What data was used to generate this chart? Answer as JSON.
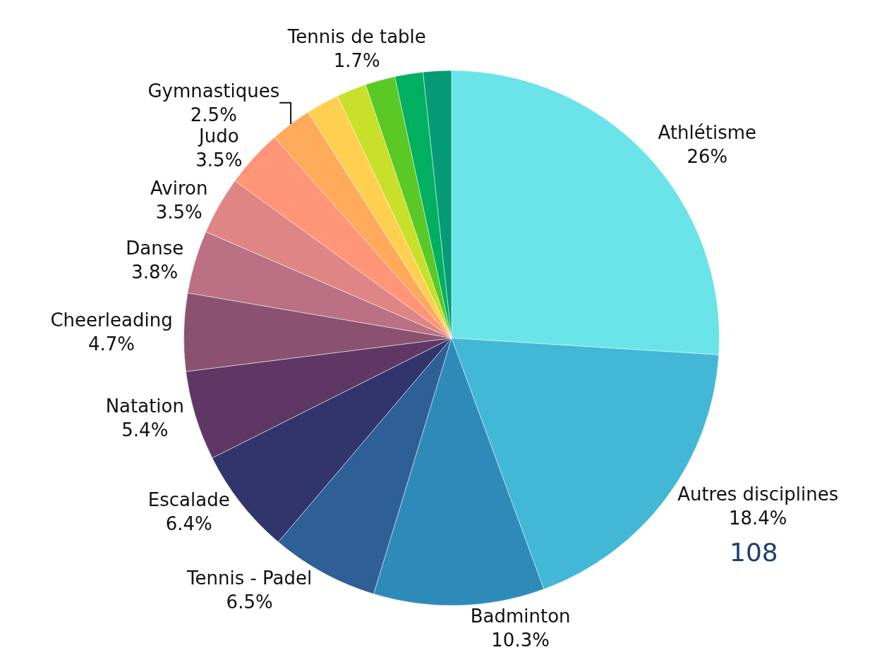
{
  "chart_data": {
    "type": "pie",
    "categories": [
      "Athlétisme",
      "Autres disciplines",
      "Badminton",
      "Tennis - Padel",
      "Escalade",
      "Natation",
      "Cheerleading",
      "Danse",
      "Aviron",
      "Judo",
      "Gymnastiques",
      null,
      null,
      null,
      null,
      "Tennis de table"
    ],
    "values": [
      26,
      18.4,
      10.3,
      6.5,
      6.4,
      5.4,
      4.7,
      3.8,
      3.5,
      3.5,
      2.5,
      2.0,
      1.8,
      1.8,
      1.7,
      1.7
    ],
    "value_labels": [
      "26%",
      "18.4%",
      "10.3%",
      "6.5%",
      "6.4%",
      "5.4%",
      "4.7%",
      "3.8%",
      "3.5%",
      "3.5%",
      "2.5%",
      null,
      null,
      null,
      null,
      "1.7%"
    ],
    "colors": [
      "#6ae4e8",
      "#42b7d6",
      "#2e8bb9",
      "#2e5f97",
      "#31356c",
      "#5e3765",
      "#8a5270",
      "#bb7083",
      "#e08585",
      "#ff9477",
      "#ffaa5a",
      "#ffd050",
      "#c8e02a",
      "#5ac825",
      "#00b060",
      "#069b77"
    ],
    "legend": false,
    "annotations": [
      "108"
    ]
  }
}
